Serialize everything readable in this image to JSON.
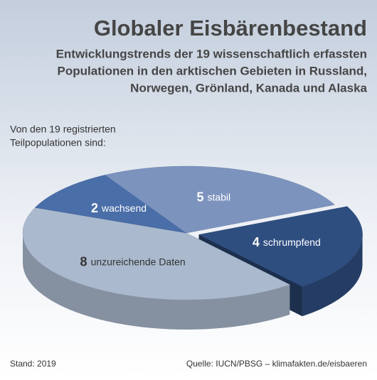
{
  "chart_data": {
    "type": "pie3d",
    "title": "Globaler Eisbärenbestand",
    "subtitle": [
      "Entwicklungstrends der 19 wissenschaftlich erfassten",
      "Populationen in den arktischen Gebieten in Russland,",
      "Norwegen, Grönland, Kanada und Alaska"
    ],
    "intro": [
      "Von den 19 registrierten",
      "Teilpopulationen sind:"
    ],
    "categories": [
      "schrumpfend",
      "unzureichende Daten",
      "wachsend",
      "stabil"
    ],
    "values": [
      4,
      8,
      2,
      5
    ],
    "colors": [
      "#2f4e80",
      "#aab9cd",
      "#4a6ea8",
      "#7c93be"
    ],
    "exploded": "schrumpfend",
    "note": "Stand: 2019",
    "source": "Quelle: IUCN/PBSG – klimafakten.de/eisbaeren"
  }
}
